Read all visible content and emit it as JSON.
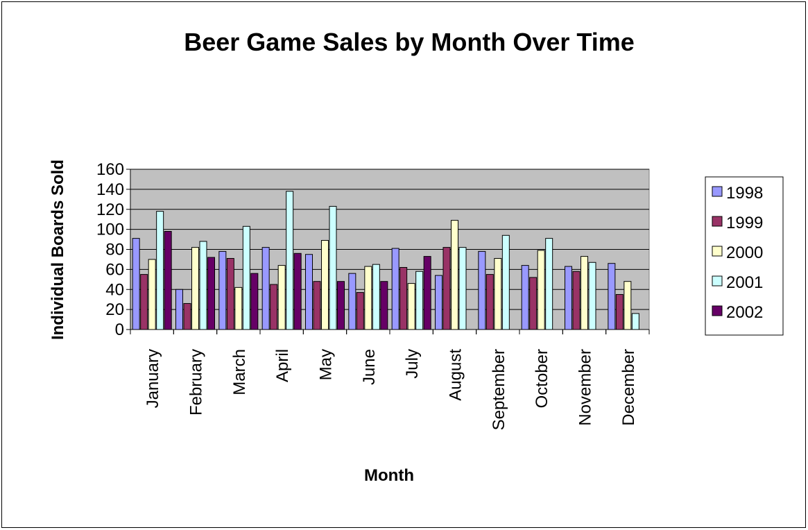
{
  "chart_data": {
    "type": "bar",
    "title": "Beer Game Sales by Month Over Time",
    "xlabel": "Month",
    "ylabel": "Individual Boards Sold",
    "ylim": [
      0,
      160
    ],
    "yticks": [
      0,
      20,
      40,
      60,
      80,
      100,
      120,
      140,
      160
    ],
    "grid": true,
    "legend_position": "right",
    "plot_background": "#c0c0c0",
    "categories": [
      "January",
      "February",
      "March",
      "April",
      "May",
      "June",
      "July",
      "August",
      "September",
      "October",
      "November",
      "December"
    ],
    "series": [
      {
        "name": "1998",
        "color": "#9999ff",
        "values": [
          91,
          40,
          78,
          82,
          75,
          56,
          81,
          54,
          78,
          64,
          63,
          66
        ]
      },
      {
        "name": "1999",
        "color": "#993366",
        "values": [
          55,
          26,
          71,
          45,
          48,
          37,
          62,
          82,
          55,
          52,
          58,
          35
        ]
      },
      {
        "name": "2000",
        "color": "#ffffcc",
        "values": [
          70,
          82,
          42,
          64,
          89,
          63,
          46,
          109,
          71,
          79,
          73,
          48
        ]
      },
      {
        "name": "2001",
        "color": "#ccffff",
        "values": [
          118,
          88,
          103,
          138,
          123,
          65,
          58,
          82,
          94,
          91,
          67,
          16
        ]
      },
      {
        "name": "2002",
        "color": "#660066",
        "values": [
          98,
          72,
          56,
          76,
          48,
          48,
          73,
          null,
          null,
          null,
          null,
          null
        ]
      }
    ]
  }
}
